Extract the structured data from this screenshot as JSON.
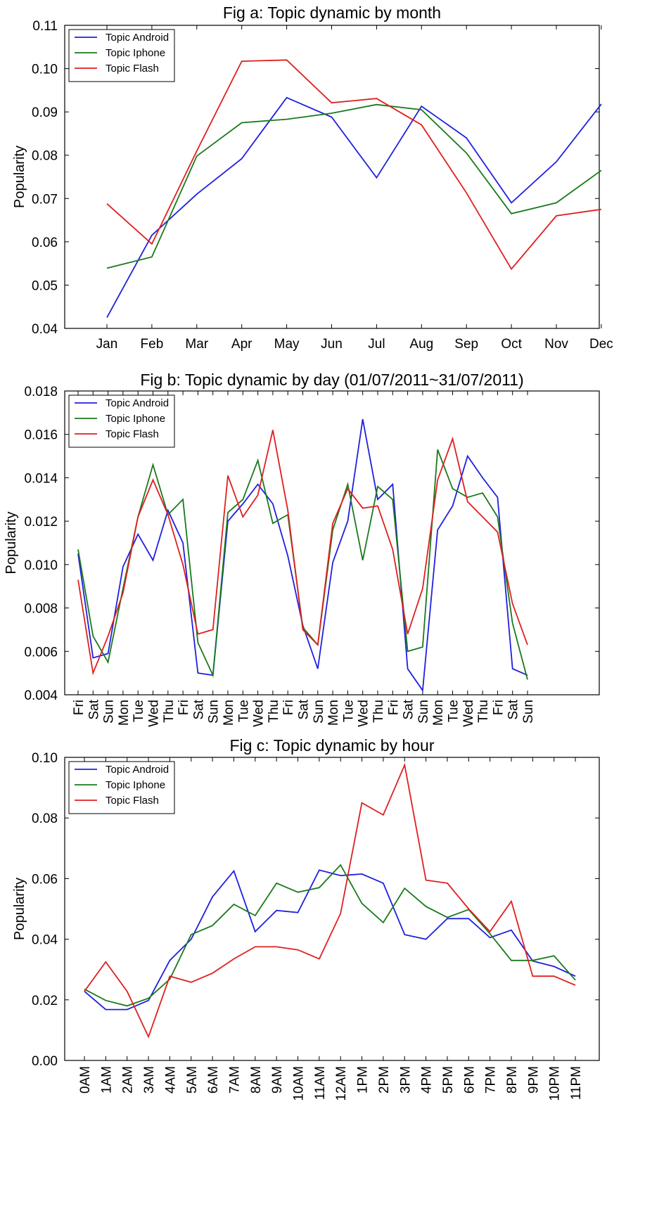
{
  "colors": {
    "android": "#1f1fe0",
    "iphone": "#1a7a1a",
    "flash": "#e01f1f"
  },
  "chart_data": [
    {
      "type": "line",
      "title": "Fig a: Topic dynamic by month",
      "xlabel": "",
      "ylabel": "Popularity",
      "ylim": [
        0.04,
        0.11
      ],
      "yticks": [
        "0.04",
        "0.05",
        "0.06",
        "0.07",
        "0.08",
        "0.09",
        "0.10",
        "0.11"
      ],
      "legend_position": "top-left",
      "x": [
        "Jan",
        "Feb",
        "Mar",
        "Apr",
        "May",
        "Jun",
        "Jul",
        "Aug",
        "Sep",
        "Oct",
        "Nov",
        "Dec"
      ],
      "series": [
        {
          "name": "Topic Android",
          "values": [
            0.0425,
            0.0615,
            0.071,
            0.0792,
            0.0933,
            0.0888,
            0.0748,
            0.0913,
            0.084,
            0.069,
            0.0785,
            0.0918
          ]
        },
        {
          "name": "Topic Iphone",
          "values": [
            0.0539,
            0.0565,
            0.0798,
            0.0875,
            0.0883,
            0.0897,
            0.0917,
            0.0905,
            0.0805,
            0.0665,
            0.069,
            0.0765
          ]
        },
        {
          "name": "Topic Flash",
          "values": [
            0.0688,
            0.0595,
            0.081,
            0.1017,
            0.102,
            0.0921,
            0.0931,
            0.087,
            0.0713,
            0.0537,
            0.066,
            0.0675
          ]
        }
      ]
    },
    {
      "type": "line",
      "title": "Fig b: Topic dynamic by day (01/07/2011~31/07/2011)",
      "xlabel": "",
      "ylabel": "Popularity",
      "ylim": [
        0.004,
        0.018
      ],
      "yticks": [
        "0.004",
        "0.006",
        "0.008",
        "0.010",
        "0.012",
        "0.014",
        "0.016",
        "0.018"
      ],
      "legend_position": "top-left",
      "x": [
        "Fri",
        "Sat",
        "Sun",
        "Mon",
        "Tue",
        "Wed",
        "Thu",
        "Fri",
        "Sat",
        "Sun",
        "Mon",
        "Tue",
        "Wed",
        "Thu",
        "Fri",
        "Sat",
        "Sun",
        "Mon",
        "Tue",
        "Wed",
        "Thu",
        "Fri",
        "Sat",
        "Sun",
        "Mon",
        "Tue",
        "Wed",
        "Thu",
        "Fri",
        "Sat",
        "Sun"
      ],
      "series": [
        {
          "name": "Topic Android",
          "values": [
            0.0105,
            0.0057,
            0.0059,
            0.0099,
            0.0114,
            0.0102,
            0.0125,
            0.011,
            0.005,
            0.0049,
            0.012,
            0.0128,
            0.0137,
            0.0128,
            0.0104,
            0.0072,
            0.0052,
            0.0101,
            0.012,
            0.0167,
            0.013,
            0.0137,
            0.0052,
            0.0042,
            0.0116,
            0.0127,
            0.015,
            0.014,
            0.0131,
            0.0052,
            0.0049
          ]
        },
        {
          "name": "Topic Iphone",
          "values": [
            0.0107,
            0.0067,
            0.0055,
            0.0089,
            0.0122,
            0.0146,
            0.0123,
            0.013,
            0.0064,
            0.0049,
            0.0124,
            0.013,
            0.0148,
            0.0119,
            0.0123,
            0.0071,
            0.0063,
            0.0116,
            0.0137,
            0.0102,
            0.0136,
            0.013,
            0.006,
            0.0062,
            0.0153,
            0.0135,
            0.0131,
            0.0133,
            0.0122,
            0.0073,
            0.0047
          ]
        },
        {
          "name": "Topic Flash",
          "values": [
            0.0093,
            0.005,
            0.0067,
            0.0087,
            0.0122,
            0.0139,
            0.0123,
            0.01,
            0.0068,
            0.007,
            0.0141,
            0.0122,
            0.0132,
            0.0162,
            0.0125,
            0.007,
            0.0063,
            0.0119,
            0.0135,
            0.0126,
            0.0127,
            0.0107,
            0.0068,
            0.0089,
            0.0139,
            0.0158,
            0.0129,
            0.0122,
            0.0115,
            0.0082,
            0.0063
          ]
        }
      ]
    },
    {
      "type": "line",
      "title": "Fig c: Topic dynamic by hour",
      "xlabel": "",
      "ylabel": "Popularity",
      "ylim": [
        0.0,
        0.1
      ],
      "yticks": [
        "0.00",
        "0.02",
        "0.04",
        "0.06",
        "0.08",
        "0.10"
      ],
      "legend_position": "top-left",
      "x": [
        "0AM",
        "1AM",
        "2AM",
        "3AM",
        "4AM",
        "5AM",
        "6AM",
        "7AM",
        "8AM",
        "9AM",
        "10AM",
        "11AM",
        "12AM",
        "1PM",
        "2PM",
        "3PM",
        "4PM",
        "5PM",
        "6PM",
        "7PM",
        "8PM",
        "9PM",
        "10PM",
        "11PM"
      ],
      "series": [
        {
          "name": "Topic Android",
          "values": [
            0.0228,
            0.0168,
            0.0168,
            0.0198,
            0.033,
            0.04,
            0.054,
            0.0625,
            0.0425,
            0.0495,
            0.0488,
            0.0628,
            0.061,
            0.0615,
            0.0585,
            0.0415,
            0.04,
            0.0468,
            0.0468,
            0.0405,
            0.043,
            0.0328,
            0.031,
            0.0278
          ]
        },
        {
          "name": "Topic Iphone",
          "values": [
            0.0235,
            0.0198,
            0.018,
            0.0205,
            0.0268,
            0.0415,
            0.0445,
            0.0515,
            0.0478,
            0.0585,
            0.0555,
            0.057,
            0.0645,
            0.0518,
            0.0455,
            0.0568,
            0.0508,
            0.0472,
            0.0498,
            0.0418,
            0.033,
            0.033,
            0.0345,
            0.0265
          ]
        },
        {
          "name": "Topic Flash",
          "values": [
            0.0228,
            0.0325,
            0.0228,
            0.0078,
            0.0278,
            0.0258,
            0.0288,
            0.0335,
            0.0375,
            0.0375,
            0.0365,
            0.0335,
            0.0485,
            0.085,
            0.081,
            0.0975,
            0.0595,
            0.0585,
            0.05,
            0.0425,
            0.0525,
            0.0278,
            0.0278,
            0.0248
          ]
        }
      ]
    }
  ]
}
